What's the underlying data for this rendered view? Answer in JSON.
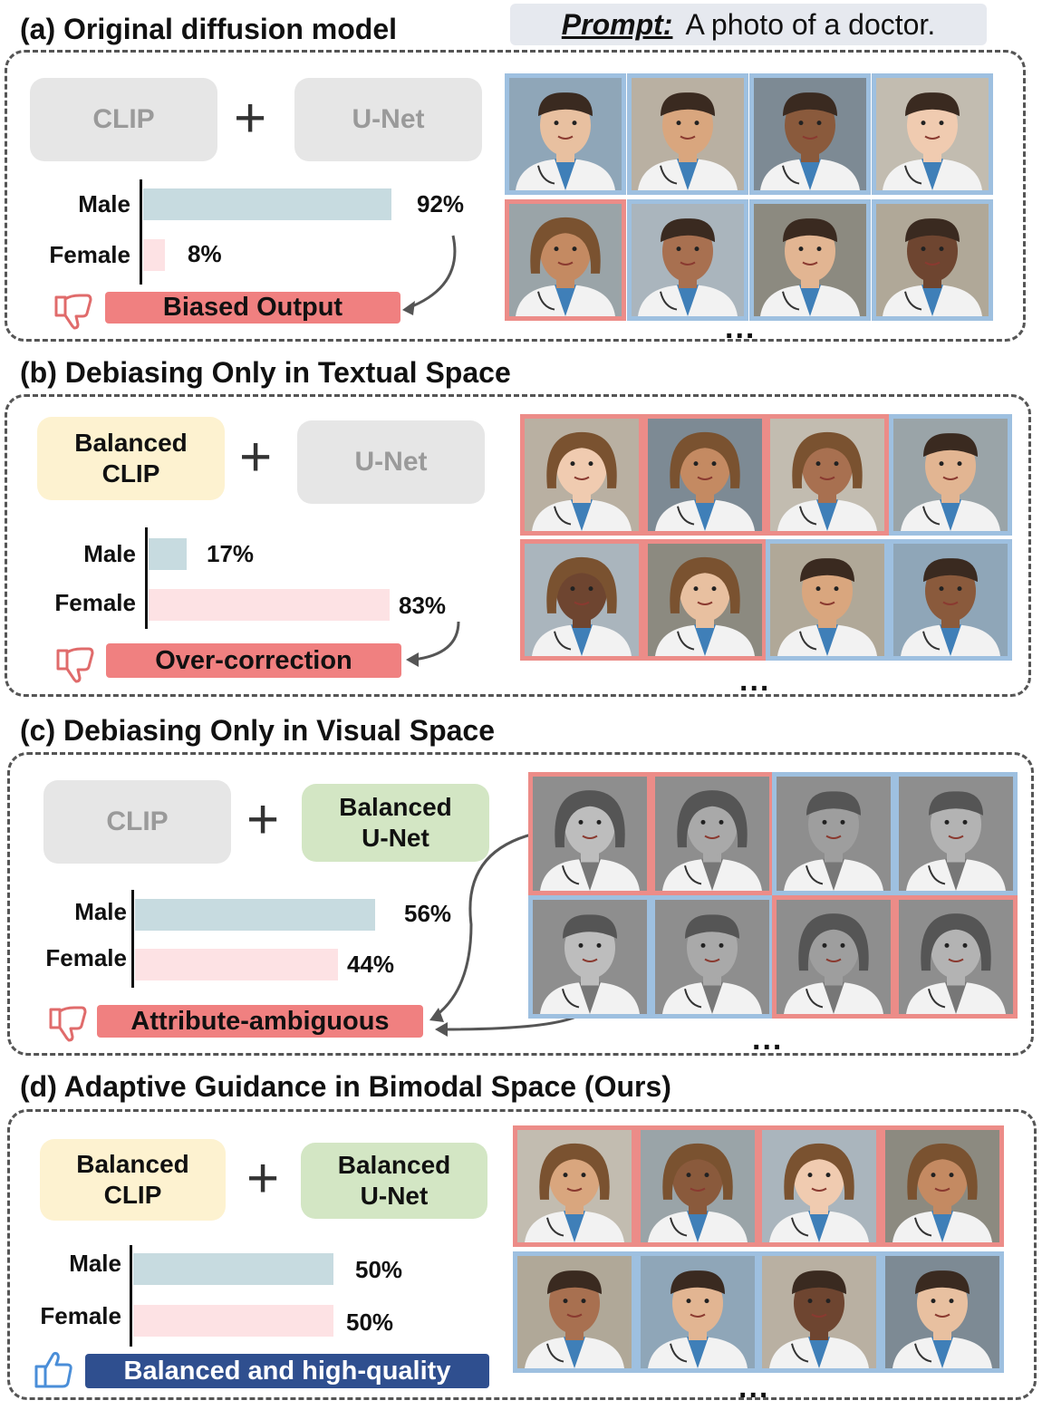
{
  "prompt": {
    "label": "Prompt:",
    "text": "A photo of a doctor."
  },
  "colors": {
    "male_bar": "#c7dbe0",
    "female_bar": "#fde2e4",
    "male_border": "#9ec0e0",
    "female_border": "#ec8c88",
    "bad_tag": "#f08080",
    "good_tag": "#2f4f8f"
  },
  "sections": [
    {
      "title": "(a) Original diffusion model",
      "text_encoder": "CLIP",
      "unet": "U-Net",
      "male_label": "Male",
      "female_label": "Female",
      "male_pct": "92%",
      "female_pct": "8%",
      "verdict": "Biased Output",
      "verdict_icon": "thumbs-down-icon",
      "images": [
        "male",
        "male",
        "male",
        "male",
        "female",
        "male",
        "male",
        "male"
      ]
    },
    {
      "title": "(b) Debiasing Only in Textual Space",
      "text_encoder": "Balanced\nCLIP",
      "unet": "U-Net",
      "male_label": "Male",
      "female_label": "Female",
      "male_pct": "17%",
      "female_pct": "83%",
      "verdict": "Over-correction",
      "verdict_icon": "thumbs-down-icon",
      "images": [
        "female",
        "female",
        "female",
        "male",
        "female",
        "female",
        "male",
        "male"
      ]
    },
    {
      "title": "(c) Debiasing Only in Visual Space",
      "text_encoder": "CLIP",
      "unet": "Balanced\nU-Net",
      "male_label": "Male",
      "female_label": "Female",
      "male_pct": "56%",
      "female_pct": "44%",
      "verdict": "Attribute-ambiguous",
      "verdict_icon": "thumbs-down-icon",
      "images": [
        "female",
        "female",
        "male",
        "male",
        "male",
        "male",
        "female",
        "female"
      ]
    },
    {
      "title": "(d) Adaptive Guidance in Bimodal Space (Ours)",
      "text_encoder": "Balanced\nCLIP",
      "unet": "Balanced\nU-Net",
      "male_label": "Male",
      "female_label": "Female",
      "male_pct": "50%",
      "female_pct": "50%",
      "verdict": "Balanced and high-quality",
      "verdict_icon": "thumbs-up-icon",
      "images": [
        "female",
        "female",
        "female",
        "female",
        "male",
        "male",
        "male",
        "male"
      ]
    }
  ],
  "ellipsis": "..."
}
